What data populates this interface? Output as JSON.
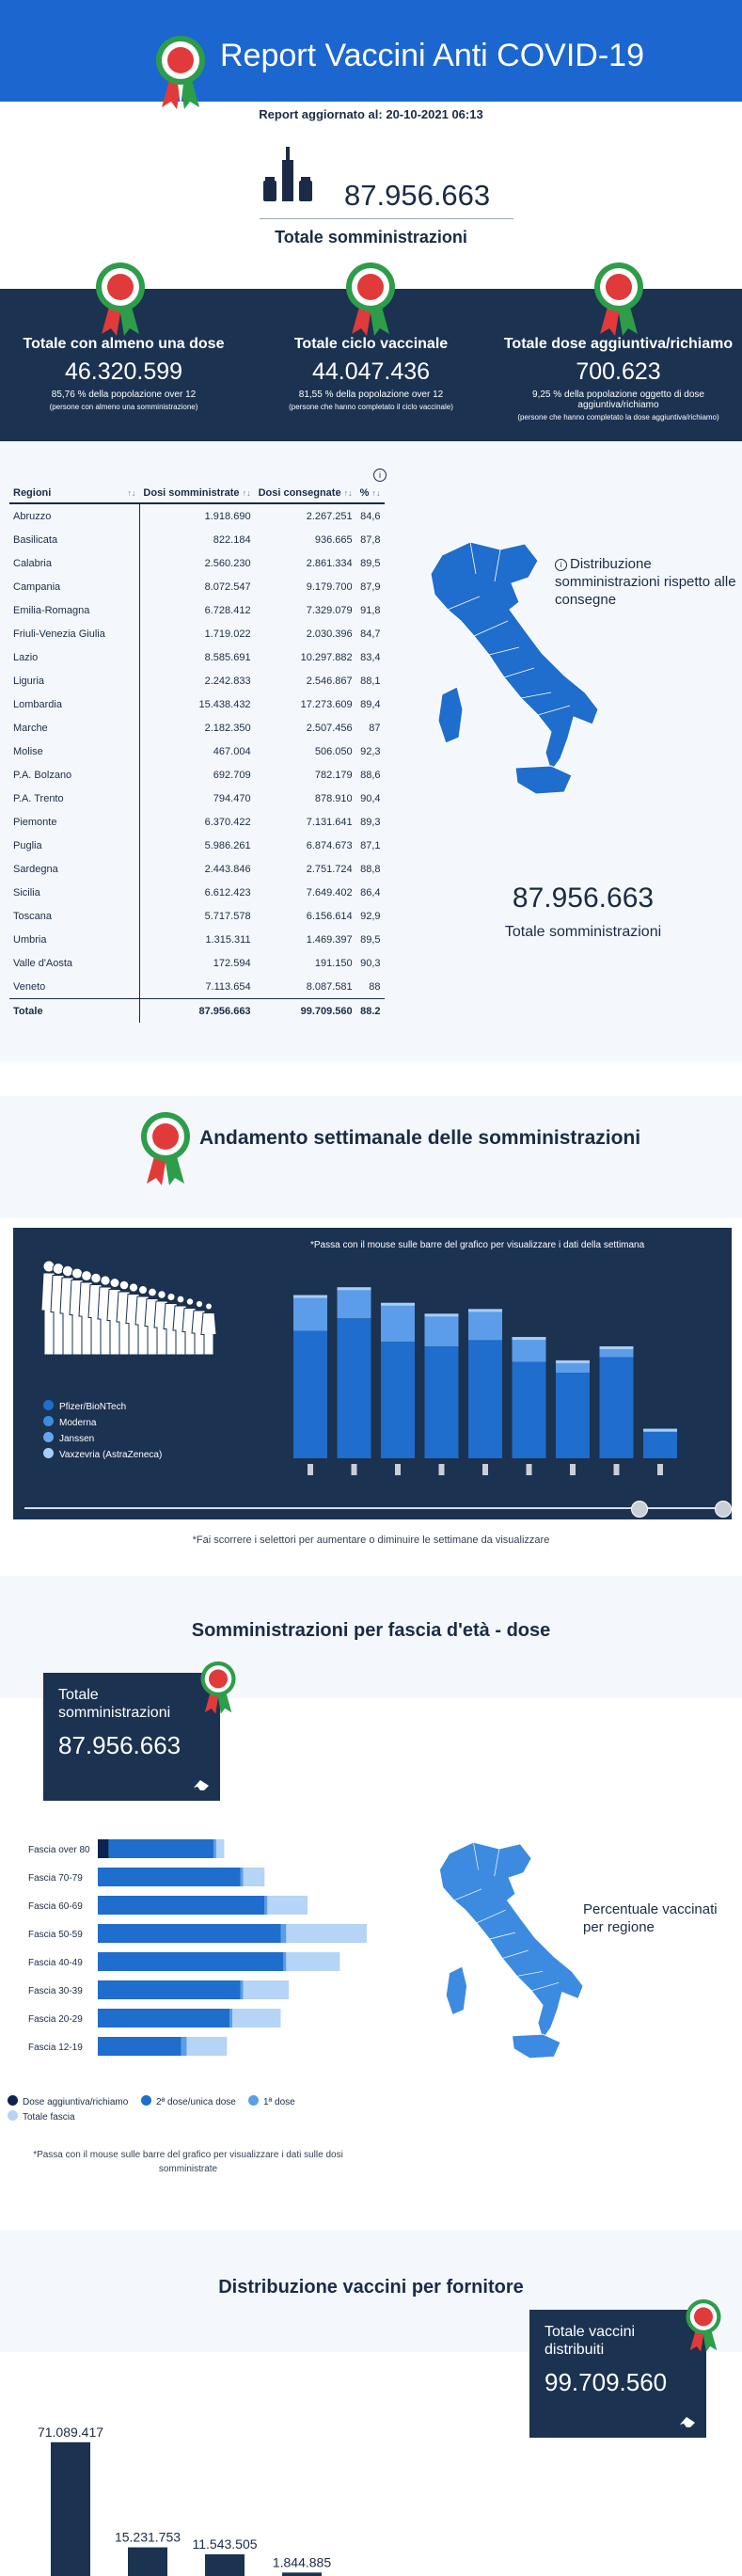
{
  "header": {
    "title": "Report Vaccini Anti COVID-19",
    "updated": "Report aggiornato al: 20-10-2021 06:13"
  },
  "total": {
    "value": "87.956.663",
    "label": "Totale somministrazioni"
  },
  "stats": [
    {
      "title": "Totale con almeno una dose",
      "value": "46.320.599",
      "pct": "85,76 % della popolazione over 12",
      "sub": "(persone con almeno una somministrazione)"
    },
    {
      "title": "Totale ciclo vaccinale",
      "value": "44.047.436",
      "pct": "81,55 % della popolazione over 12",
      "sub": "(persone che hanno completato il ciclo vaccinale)"
    },
    {
      "title": "Totale dose aggiuntiva/richiamo",
      "value": "700.623",
      "pct": "9,25 % della popolazione oggetto di dose aggiuntiva/richiamo",
      "sub": "(persone che hanno completato la dose aggiuntiva/richiamo)"
    }
  ],
  "regions_table": {
    "headers": [
      "Regioni",
      "Dosi somministrate",
      "Dosi consegnate",
      "%"
    ],
    "sort_icons": [
      "↑↓",
      "↑↓",
      "↑↓",
      "↑↓"
    ],
    "rows": [
      [
        "Abruzzo",
        "1.918.690",
        "2.267.251",
        "84,6"
      ],
      [
        "Basilicata",
        "822.184",
        "936.665",
        "87,8"
      ],
      [
        "Calabria",
        "2.560.230",
        "2.861.334",
        "89,5"
      ],
      [
        "Campania",
        "8.072.547",
        "9.179.700",
        "87,9"
      ],
      [
        "Emilia-Romagna",
        "6.728.412",
        "7.329.079",
        "91,8"
      ],
      [
        "Friuli-Venezia Giulia",
        "1.719.022",
        "2.030.396",
        "84,7"
      ],
      [
        "Lazio",
        "8.585.691",
        "10.297.882",
        "83,4"
      ],
      [
        "Liguria",
        "2.242.833",
        "2.546.867",
        "88,1"
      ],
      [
        "Lombardia",
        "15.438.432",
        "17.273.609",
        "89,4"
      ],
      [
        "Marche",
        "2.182.350",
        "2.507.456",
        "87"
      ],
      [
        "Molise",
        "467.004",
        "506.050",
        "92,3"
      ],
      [
        "P.A. Bolzano",
        "692.709",
        "782.179",
        "88,6"
      ],
      [
        "P.A. Trento",
        "794.470",
        "878.910",
        "90,4"
      ],
      [
        "Piemonte",
        "6.370.422",
        "7.131.641",
        "89,3"
      ],
      [
        "Puglia",
        "5.986.261",
        "6.874.673",
        "87,1"
      ],
      [
        "Sardegna",
        "2.443.846",
        "2.751.724",
        "88,8"
      ],
      [
        "Sicilia",
        "6.612.423",
        "7.649.402",
        "86,4"
      ],
      [
        "Toscana",
        "5.717.578",
        "6.156.614",
        "92,9"
      ],
      [
        "Umbria",
        "1.315.311",
        "1.469.397",
        "89,5"
      ],
      [
        "Valle d'Aosta",
        "172.594",
        "191.150",
        "90,3"
      ],
      [
        "Veneto",
        "7.113.654",
        "8.087.581",
        "88"
      ]
    ],
    "total_row": [
      "Totale",
      "87.956.663",
      "99.709.560",
      "88.2"
    ]
  },
  "map1": {
    "info_icon": "i",
    "info": "Distribuzione somministrazioni rispetto alle consegne",
    "value": "87.956.663",
    "label": "Totale somministrazioni"
  },
  "weekly": {
    "title": "Andamento settimanale delle somministrazioni",
    "hint": "*Passa con il mouse sulle barre del grafico per visualizzare i dati della settimana",
    "legend": [
      "Pfizer/BioNTech",
      "Moderna",
      "Janssen",
      "Vaxzevria (AstraZeneca)"
    ],
    "colors": [
      "#1f6dcc",
      "#3d8be0",
      "#64a6ef",
      "#a9cdf6"
    ],
    "note": "*Fai scorrere i selettori per aumentare o diminuire le settimane da visualizzare",
    "slider": {
      "from": 0.88,
      "to": 1.0
    }
  },
  "age": {
    "title": "Somministrazioni per fascia d'età - dose",
    "box_label": "Totale somministrazioni",
    "box_value": "87.956.663",
    "legend": [
      "Dose aggiuntiva/richiamo",
      "2ª dose/unica dose",
      "1ª dose",
      "Totale fascia"
    ],
    "colors": [
      "#0d2350",
      "#1f6dcc",
      "#5b9de8",
      "#b6d4f5"
    ],
    "note": "*Passa con il mouse sulle barre del grafico per visualizzare i dati sulle dosi somministrate",
    "map_label": "Percentuale vaccinati per regione"
  },
  "supplier": {
    "title": "Distribuzione vaccini per fornitore",
    "box_label": "Totale vaccini distribuiti",
    "box_value": "99.709.560"
  },
  "chart_data": [
    {
      "type": "bar",
      "categories": [
        "",
        "",
        "",
        "",
        "",
        "",
        "",
        "",
        ""
      ],
      "series": [
        {
          "values": [
            1.05,
            1.1,
            1.0,
            0.93,
            0.96,
            0.78,
            0.63,
            0.72,
            0.19
          ]
        },
        {
          "values": [
            0.82,
            0.9,
            0.75,
            0.72,
            0.76,
            0.62,
            0.55,
            0.65,
            0.17
          ]
        }
      ],
      "ylim": [
        0,
        1.15
      ]
    },
    {
      "type": "bar",
      "orientation": "horizontal",
      "categories": [
        "Fascia over 80",
        "Fascia 70-79",
        "Fascia 60-69",
        "Fascia 50-59",
        "Fascia 40-49",
        "Fascia 30-39",
        "Fascia 20-29",
        "Fascia 12-19"
      ],
      "series": [
        {
          "name": "Dose aggiuntiva/richiamo",
          "values": [
            0.04,
            0,
            0,
            0,
            0,
            0,
            0,
            0
          ]
        },
        {
          "name": "2ª dose/unica dose",
          "values": [
            0.39,
            0.53,
            0.62,
            0.68,
            0.69,
            0.53,
            0.49,
            0.31
          ]
        },
        {
          "name": "1ª dose",
          "values": [
            0.01,
            0.01,
            0.01,
            0.02,
            0.01,
            0.01,
            0.01,
            0.02
          ]
        },
        {
          "name": "Totale fascia",
          "values": [
            0.47,
            0.62,
            0.78,
            1.0,
            0.9,
            0.71,
            0.68,
            0.48
          ]
        }
      ]
    },
    {
      "type": "bar",
      "categories": [
        "",
        "",
        "",
        ""
      ],
      "values": [
        71089417,
        15231753,
        11543505,
        1844885
      ],
      "labels": [
        "71.089.417",
        "15.231.753",
        "11.543.505",
        "1.844.885"
      ],
      "ylim": [
        0,
        75000000
      ]
    }
  ]
}
